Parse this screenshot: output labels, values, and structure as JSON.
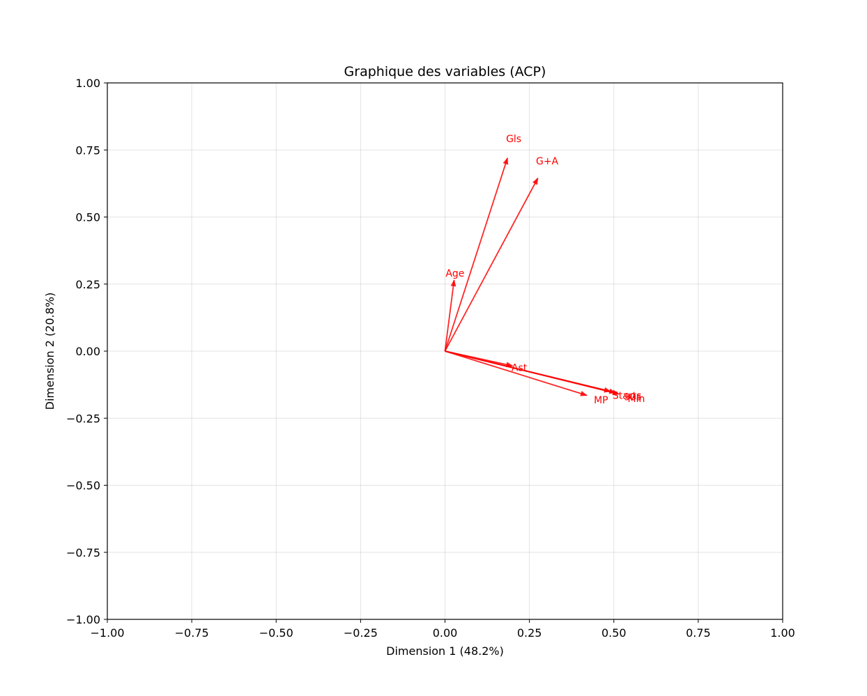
{
  "chart_data": {
    "type": "scatter",
    "subtype": "pca-variable-vectors",
    "title": "Graphique des variables (ACP)",
    "xlabel": "Dimension 1 (48.2%)",
    "ylabel": "Dimension 2 (20.8%)",
    "xlim": [
      -1.0,
      1.0
    ],
    "ylim": [
      -1.0,
      1.0
    ],
    "xticks": [
      "−1.00",
      "−0.75",
      "−0.50",
      "−0.25",
      "0.00",
      "0.25",
      "0.50",
      "0.75",
      "1.00"
    ],
    "yticks": [
      "−1.00",
      "−0.75",
      "−0.50",
      "−0.25",
      "0.00",
      "0.25",
      "0.50",
      "0.75",
      "1.00"
    ],
    "grid": true,
    "vector_color": "#ff0000",
    "vectors": [
      {
        "name": "Gls",
        "x": 0.185,
        "y": 0.72
      },
      {
        "name": "G+A",
        "x": 0.275,
        "y": 0.645
      },
      {
        "name": "Age",
        "x": 0.027,
        "y": 0.265
      },
      {
        "name": "Ast",
        "x": 0.2,
        "y": -0.055
      },
      {
        "name": "MP",
        "x": 0.42,
        "y": -0.165
      },
      {
        "name": "Starts",
        "x": 0.49,
        "y": -0.15
      },
      {
        "name": "90s",
        "x": 0.505,
        "y": -0.155
      },
      {
        "name": "Min",
        "x": 0.515,
        "y": -0.16
      }
    ]
  }
}
